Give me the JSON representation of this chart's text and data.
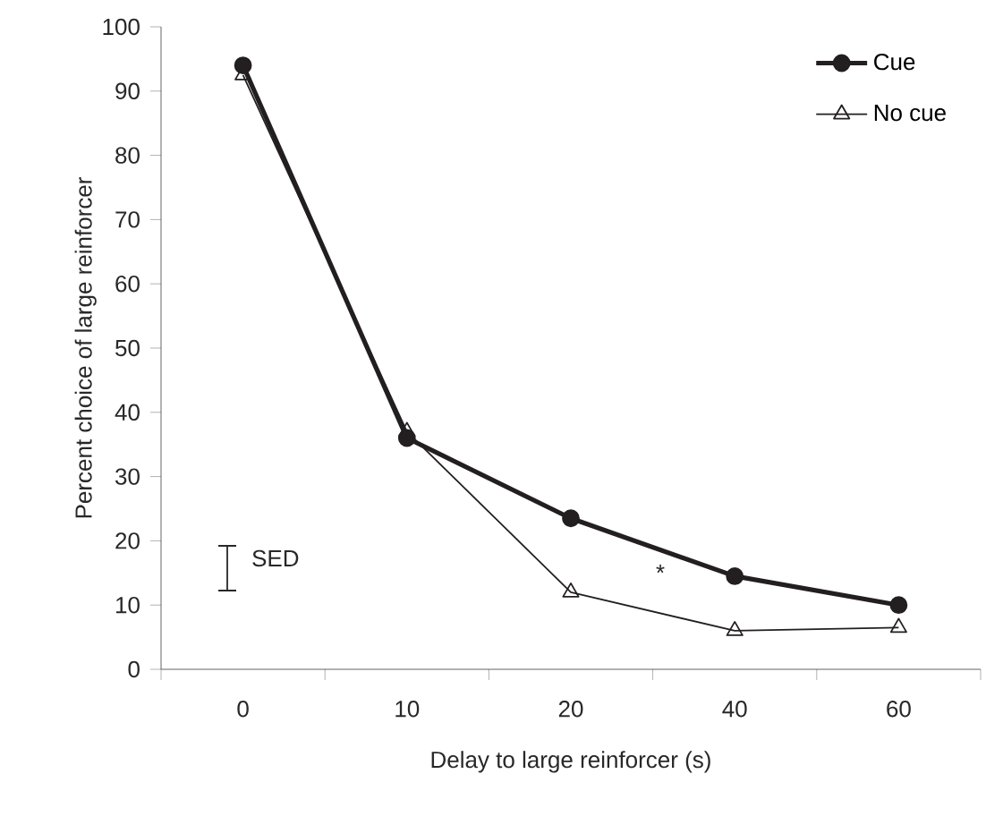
{
  "chart_data": {
    "type": "line",
    "xlabel": "Delay to large reinforcer (s)",
    "ylabel": "Percent choice of large reinforcer",
    "categories": [
      "0",
      "10",
      "20",
      "40",
      "60"
    ],
    "series": [
      {
        "name": "Cue",
        "color": "#231f20",
        "marker": "circle",
        "values": [
          94,
          36,
          23.5,
          14.5,
          10
        ]
      },
      {
        "name": "No cue",
        "color": "#231f20",
        "marker": "triangle",
        "values": [
          92.5,
          37,
          12,
          6,
          6.5
        ]
      }
    ],
    "ylim": [
      0,
      100
    ],
    "yticks": [
      0,
      10,
      20,
      30,
      40,
      50,
      60,
      70,
      80,
      90,
      100
    ],
    "legend": "top right",
    "grid": false,
    "annotations": [
      "SED",
      "*"
    ]
  }
}
